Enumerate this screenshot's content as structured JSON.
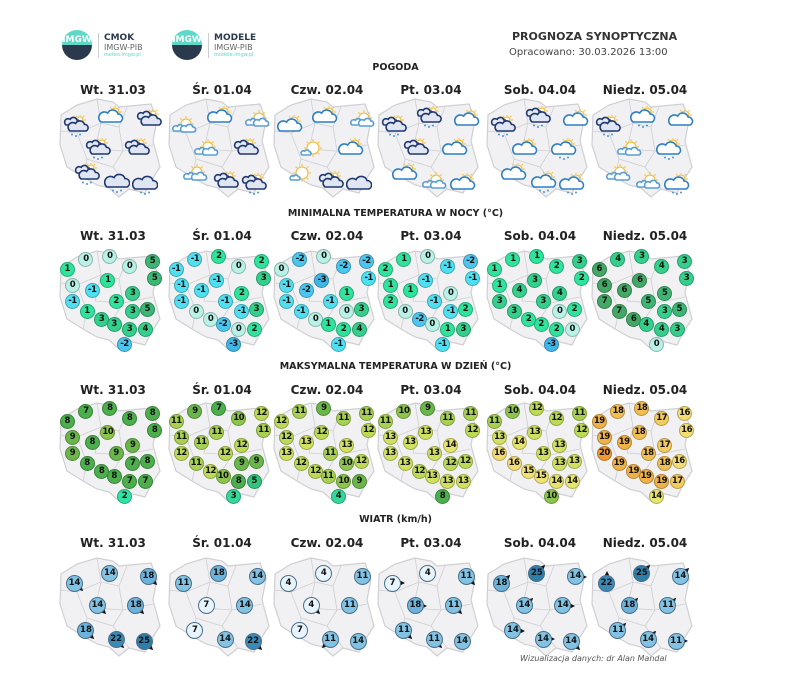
{
  "header": {
    "logo1": {
      "mark": "IMGW",
      "name": "CMOK",
      "sub": "IMGW-PIB",
      "url": "meteo.imgw.pl"
    },
    "logo2": {
      "mark": "IMGW",
      "name": "MODELE",
      "sub": "IMGW-PIB",
      "url": "modele.imgw.pl"
    },
    "title": "PROGNOZA SYNOPTYCZNA",
    "issued": "Opracowano: 30.03.2026 13:00"
  },
  "days": [
    "Wt. 31.03",
    "Śr. 01.04",
    "Czw. 02.04",
    "Pt. 03.04",
    "Sob. 04.04",
    "Niedz. 05.04"
  ],
  "sections": {
    "weather": "POGODA",
    "tmin": "MINIMALNA TEMPERATURA W NOCY (°C)",
    "tmax": "MAKSYMALNA TEMPERATURA W DZIEŃ (°C)",
    "wind": "WIATR (km/h)"
  },
  "weather": [
    [
      {
        "icon": "overcast",
        "rain": true
      },
      {
        "icon": "partly-cloudy",
        "rain": false
      },
      {
        "icon": "overcast",
        "rain": false
      },
      {
        "icon": "overcast",
        "rain": true
      },
      {
        "icon": "overcast",
        "rain": false
      },
      {
        "icon": "overcast",
        "rain": true
      },
      {
        "icon": "cloudy",
        "rain": true
      },
      {
        "icon": "cloudy",
        "rain": true
      }
    ],
    [
      {
        "icon": "sun-clouds",
        "rain": false
      },
      {
        "icon": "partly-cloudy",
        "rain": false
      },
      {
        "icon": "sun-clouds",
        "rain": false
      },
      {
        "icon": "sun-clouds",
        "rain": false
      },
      {
        "icon": "overcast",
        "rain": false
      },
      {
        "icon": "sun-clouds",
        "rain": false
      },
      {
        "icon": "overcast",
        "rain": false
      },
      {
        "icon": "overcast",
        "rain": true
      }
    ],
    [
      {
        "icon": "partly-cloudy",
        "rain": false
      },
      {
        "icon": "partly-cloudy",
        "rain": false
      },
      {
        "icon": "sun-clouds",
        "rain": false
      },
      {
        "icon": "sunny",
        "rain": false
      },
      {
        "icon": "partly-cloudy",
        "rain": false
      },
      {
        "icon": "sunny",
        "rain": false
      },
      {
        "icon": "overcast",
        "rain": false
      },
      {
        "icon": "cloudy",
        "rain": false
      }
    ],
    [
      {
        "icon": "overcast",
        "rain": true
      },
      {
        "icon": "overcast",
        "rain": true
      },
      {
        "icon": "partly-cloudy",
        "rain": false
      },
      {
        "icon": "overcast",
        "rain": false
      },
      {
        "icon": "partly-cloudy",
        "rain": false
      },
      {
        "icon": "partly-cloudy",
        "rain": false
      },
      {
        "icon": "sun-clouds",
        "rain": false
      },
      {
        "icon": "partly-cloudy",
        "rain": false
      }
    ],
    [
      {
        "icon": "overcast",
        "rain": true
      },
      {
        "icon": "overcast",
        "rain": true
      },
      {
        "icon": "partly-cloudy",
        "rain": false
      },
      {
        "icon": "partly-cloudy",
        "rain": false
      },
      {
        "icon": "partly-cloudy",
        "rain": true
      },
      {
        "icon": "partly-cloudy",
        "rain": false
      },
      {
        "icon": "partly-cloudy",
        "rain": true
      },
      {
        "icon": "partly-cloudy",
        "rain": true
      }
    ],
    [
      {
        "icon": "overcast",
        "rain": true
      },
      {
        "icon": "partly-cloudy",
        "rain": true
      },
      {
        "icon": "partly-cloudy",
        "rain": false
      },
      {
        "icon": "sun-clouds",
        "rain": false
      },
      {
        "icon": "partly-cloudy",
        "rain": true
      },
      {
        "icon": "sun-clouds",
        "rain": false
      },
      {
        "icon": "sun-clouds",
        "rain": false
      },
      {
        "icon": "partly-cloudy",
        "rain": true
      }
    ]
  ],
  "tmin": [
    [
      0,
      0,
      1,
      0,
      5,
      5,
      1,
      0,
      -1,
      3,
      -1,
      2,
      1,
      3,
      5,
      3,
      3,
      3,
      4,
      -2
    ],
    [
      -1,
      2,
      -1,
      0,
      2,
      3,
      -1,
      -1,
      -1,
      2,
      -1,
      -1,
      0,
      -1,
      3,
      0,
      -2,
      0,
      2,
      -3
    ],
    [
      -2,
      0,
      0,
      -2,
      -2,
      -1,
      -3,
      -1,
      -2,
      1,
      -1,
      -1,
      -1,
      0,
      3,
      0,
      1,
      2,
      4,
      -1
    ],
    [
      1,
      0,
      2,
      -1,
      -2,
      -1,
      -1,
      1,
      1,
      0,
      2,
      -1,
      0,
      -1,
      2,
      -2,
      0,
      1,
      3,
      -1
    ],
    [
      1,
      1,
      1,
      2,
      3,
      2,
      3,
      1,
      4,
      4,
      3,
      3,
      3,
      0,
      2,
      2,
      2,
      2,
      0,
      -3
    ],
    [
      4,
      3,
      6,
      4,
      3,
      3,
      6,
      6,
      6,
      5,
      7,
      5,
      7,
      3,
      5,
      6,
      4,
      4,
      3,
      0
    ]
  ],
  "tmax": [
    [
      7,
      8,
      8,
      8,
      8,
      8,
      10,
      9,
      8,
      9,
      9,
      9,
      8,
      7,
      8,
      8,
      8,
      7,
      7,
      2
    ],
    [
      9,
      7,
      11,
      10,
      12,
      11,
      11,
      11,
      11,
      12,
      12,
      12,
      11,
      9,
      9,
      12,
      10,
      8,
      5,
      3
    ],
    [
      11,
      9,
      12,
      11,
      11,
      12,
      12,
      12,
      13,
      13,
      13,
      11,
      12,
      10,
      12,
      12,
      11,
      10,
      9,
      4
    ],
    [
      10,
      9,
      11,
      11,
      11,
      12,
      13,
      13,
      13,
      14,
      13,
      13,
      13,
      12,
      12,
      12,
      13,
      13,
      13,
      8
    ],
    [
      10,
      12,
      11,
      12,
      11,
      12,
      13,
      13,
      14,
      13,
      16,
      13,
      16,
      13,
      13,
      15,
      15,
      14,
      14,
      10
    ],
    [
      18,
      18,
      19,
      17,
      16,
      16,
      18,
      19,
      19,
      17,
      20,
      18,
      19,
      18,
      16,
      19,
      19,
      19,
      17,
      14
    ]
  ],
  "wind": [
    [
      {
        "v": 14,
        "dir": "SE"
      },
      {
        "v": 14,
        "dir": "none"
      },
      {
        "v": 18,
        "dir": "SE"
      },
      {
        "v": 14,
        "dir": "SE"
      },
      {
        "v": 18,
        "dir": "SE"
      },
      {
        "v": 18,
        "dir": "SE"
      },
      {
        "v": 22,
        "dir": "SE"
      },
      {
        "v": 25,
        "dir": "SE"
      }
    ],
    [
      {
        "v": 11,
        "dir": "none"
      },
      {
        "v": 18,
        "dir": "none"
      },
      {
        "v": 14,
        "dir": "none"
      },
      {
        "v": 7,
        "dir": "none"
      },
      {
        "v": 14,
        "dir": "none"
      },
      {
        "v": 7,
        "dir": "none"
      },
      {
        "v": 14,
        "dir": "none"
      },
      {
        "v": 22,
        "dir": "SE"
      }
    ],
    [
      {
        "v": 4,
        "dir": "none"
      },
      {
        "v": 4,
        "dir": "none"
      },
      {
        "v": 11,
        "dir": "none"
      },
      {
        "v": 4,
        "dir": "SE"
      },
      {
        "v": 11,
        "dir": "none"
      },
      {
        "v": 7,
        "dir": "none"
      },
      {
        "v": 11,
        "dir": "SW"
      },
      {
        "v": 14,
        "dir": "none"
      }
    ],
    [
      {
        "v": 7,
        "dir": "E"
      },
      {
        "v": 4,
        "dir": "none"
      },
      {
        "v": 11,
        "dir": "SE"
      },
      {
        "v": 18,
        "dir": "E"
      },
      {
        "v": 11,
        "dir": "SE"
      },
      {
        "v": 11,
        "dir": "SE"
      },
      {
        "v": 11,
        "dir": "SE"
      },
      {
        "v": 14,
        "dir": "none"
      }
    ],
    [
      {
        "v": 18,
        "dir": "NE"
      },
      {
        "v": 25,
        "dir": "NE"
      },
      {
        "v": 14,
        "dir": "E"
      },
      {
        "v": 14,
        "dir": "NE"
      },
      {
        "v": 14,
        "dir": "E"
      },
      {
        "v": 14,
        "dir": "E"
      },
      {
        "v": 14,
        "dir": "E"
      },
      {
        "v": 14,
        "dir": "SE"
      }
    ],
    [
      {
        "v": 22,
        "dir": "N"
      },
      {
        "v": 25,
        "dir": "NE"
      },
      {
        "v": 14,
        "dir": "NE"
      },
      {
        "v": 18,
        "dir": "NE"
      },
      {
        "v": 11,
        "dir": "NE"
      },
      {
        "v": 11,
        "dir": "NE"
      },
      {
        "v": 14,
        "dir": "NE"
      },
      {
        "v": 11,
        "dir": "E"
      }
    ]
  ],
  "colors": {
    "tmin": [
      [
        -3,
        "#3fb6e6"
      ],
      [
        -2,
        "#4cc6ee"
      ],
      [
        -1,
        "#4fdff0"
      ],
      [
        0,
        "#b9f1e6"
      ],
      [
        1,
        "#2fe39c"
      ],
      [
        3,
        "#35cf8c"
      ],
      [
        5,
        "#3db573"
      ],
      [
        6,
        "#43a865"
      ]
    ],
    "tmax": [
      [
        2,
        "#2fe3a4"
      ],
      [
        3,
        "#33d89a"
      ],
      [
        5,
        "#33c47a"
      ],
      [
        7,
        "#4cae4c"
      ],
      [
        9,
        "#6ab64a"
      ],
      [
        10,
        "#8cc44c"
      ],
      [
        11,
        "#a8d052"
      ],
      [
        12,
        "#bcd958"
      ],
      [
        13,
        "#d2e062"
      ],
      [
        14,
        "#e6e46c"
      ],
      [
        15,
        "#efe274"
      ],
      [
        16,
        "#f3dc74"
      ],
      [
        17,
        "#f2cc60"
      ],
      [
        18,
        "#f0bf52"
      ],
      [
        19,
        "#efb248"
      ],
      [
        20,
        "#f09a30"
      ]
    ],
    "wind": [
      [
        4,
        "#e8f4fb"
      ],
      [
        11,
        "#82c2e2"
      ],
      [
        18,
        "#6cb2da"
      ],
      [
        22,
        "#3b8ab6"
      ],
      [
        25,
        "#2e7ea9"
      ]
    ],
    "map_fill": "#f1f1f3",
    "map_border": "#cfcfd4"
  },
  "credit": "Wizualizacja danych: dr Alan Mandal"
}
